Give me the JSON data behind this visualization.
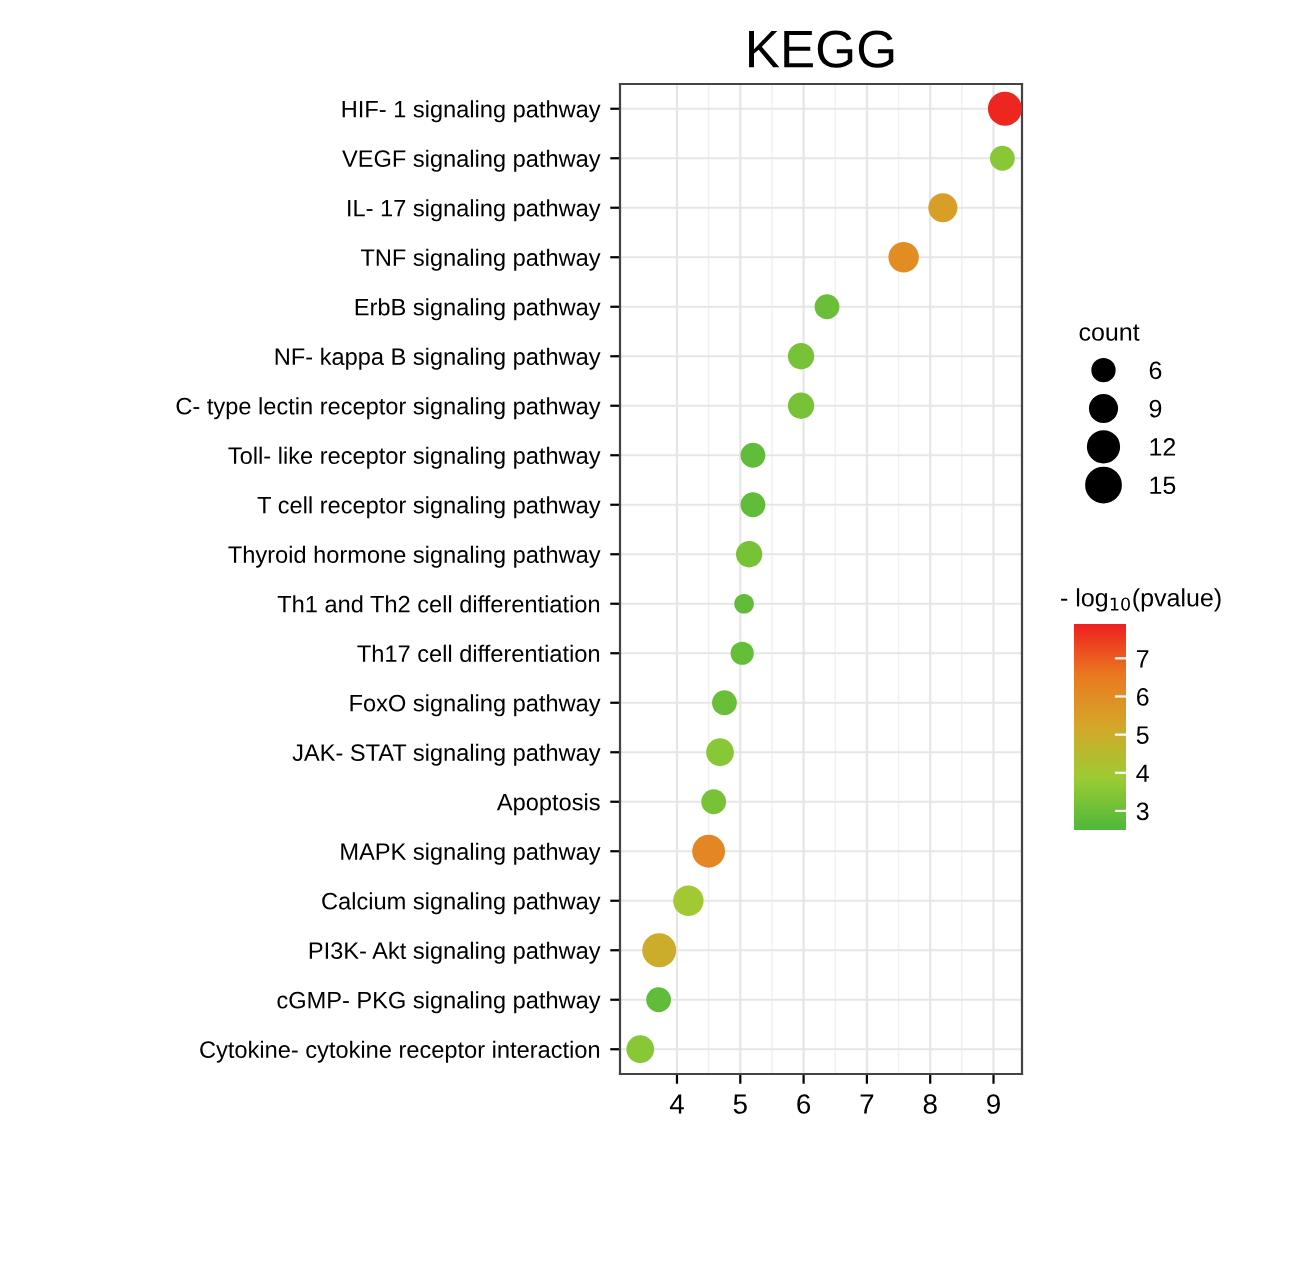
{
  "chart_data": {
    "type": "bubble",
    "title": "KEGG",
    "orientation": "horizontal",
    "categories": [
      "HIF- 1 signaling pathway",
      "VEGF signaling pathway",
      "IL- 17 signaling pathway",
      "TNF signaling pathway",
      "ErbB signaling pathway",
      "NF- kappa B signaling pathway",
      "C- type lectin receptor signaling pathway",
      "Toll- like receptor signaling pathway",
      "T cell receptor signaling pathway",
      "Thyroid hormone signaling pathway",
      "Th1 and Th2 cell differentiation",
      "Th17 cell differentiation",
      "FoxO signaling pathway",
      "JAK- STAT signaling pathway",
      "Apoptosis",
      "MAPK signaling pathway",
      "Calcium signaling pathway",
      "PI3K- Akt signaling pathway",
      "cGMP- PKG signaling pathway",
      "Cytokine- cytokine receptor interaction"
    ],
    "values": [
      9.18,
      9.14,
      8.2,
      7.58,
      6.37,
      5.96,
      5.96,
      5.2,
      5.2,
      5.14,
      5.06,
      5.03,
      4.75,
      4.68,
      4.58,
      4.5,
      4.18,
      3.72,
      3.71,
      3.42
    ],
    "sizes": [
      15,
      8,
      11,
      12,
      8,
      9,
      9,
      8,
      8,
      9,
      5,
      7,
      8,
      10,
      8,
      14,
      12,
      15,
      8,
      10
    ],
    "cvalues": [
      7.8,
      3.5,
      5.5,
      6.0,
      3.0,
      3.2,
      3.2,
      2.8,
      2.8,
      3.2,
      2.8,
      2.9,
      3.0,
      3.5,
      3.2,
      6.2,
      4.0,
      5.0,
      2.8,
      3.5
    ],
    "size_legend": [
      6,
      9,
      12,
      15
    ],
    "legend_title": "count",
    "clabel": "- log$_{10}$(pvalue)",
    "clim": [
      2.5,
      7.9
    ],
    "cticks": [
      3,
      4,
      5,
      6,
      7
    ],
    "xlim": [
      3.1,
      9.45
    ],
    "xticks": [
      4,
      5,
      6,
      7,
      8,
      9
    ],
    "grid": true
  }
}
